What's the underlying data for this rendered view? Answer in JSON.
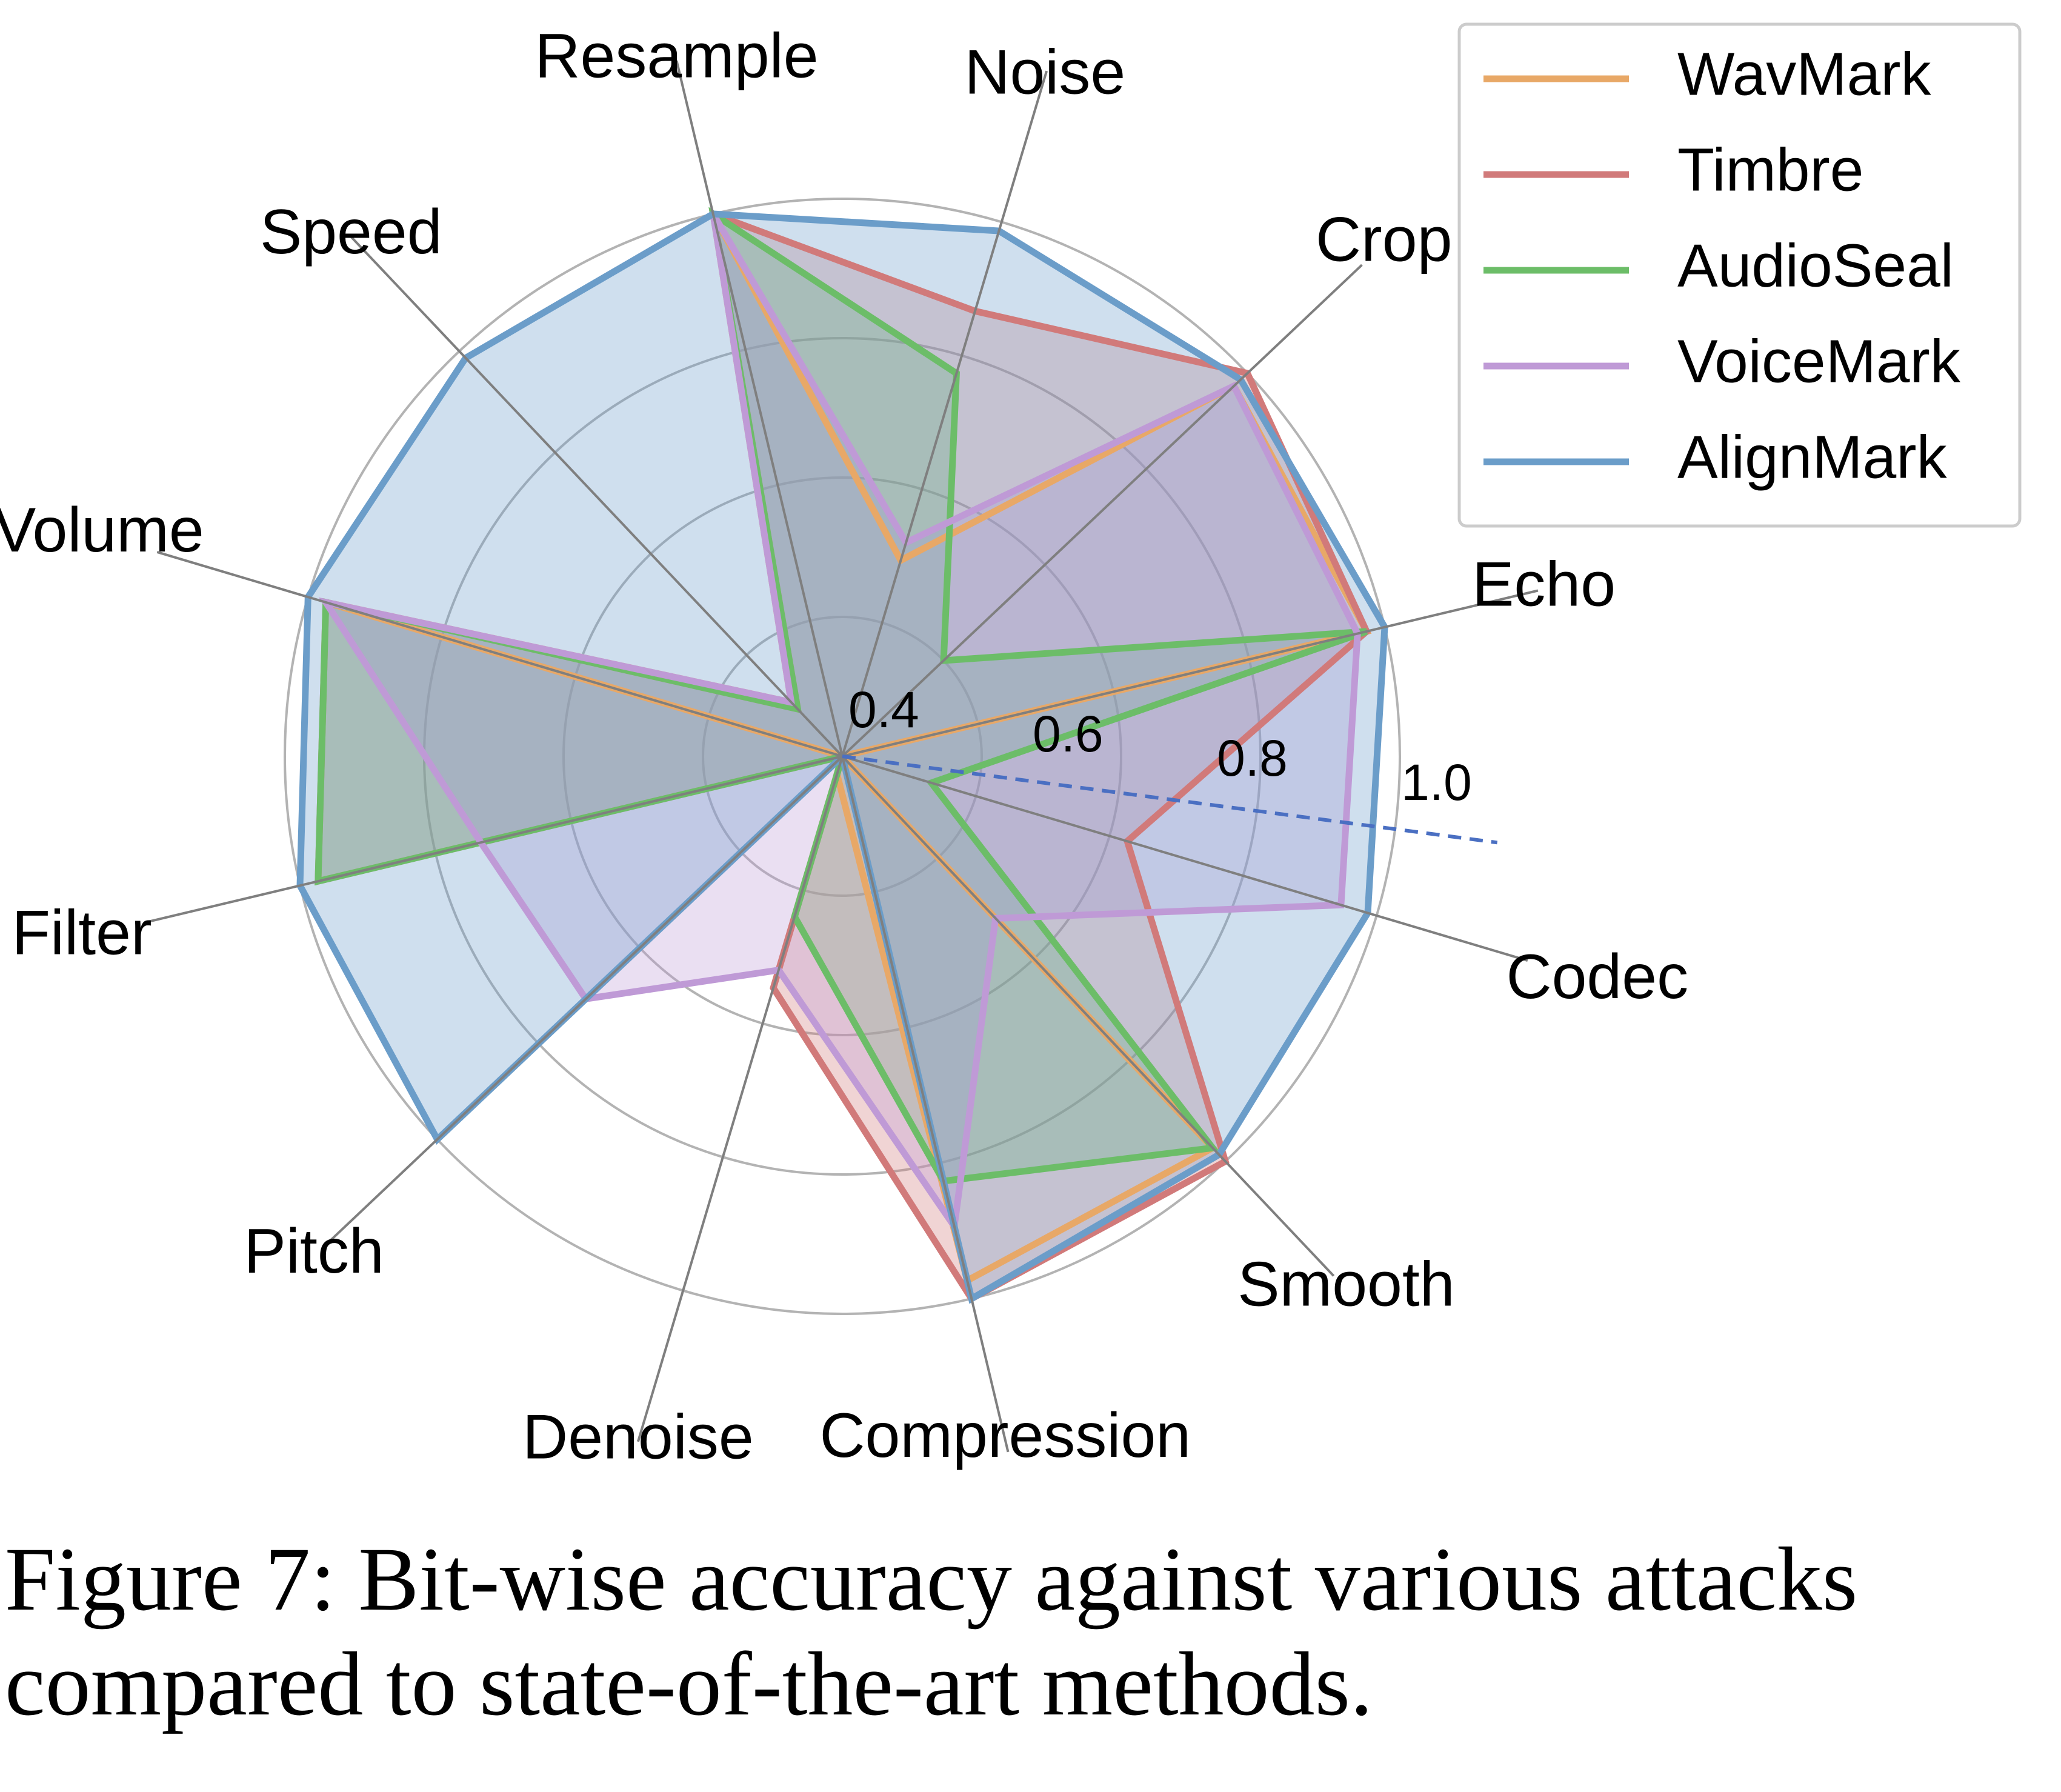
{
  "chart_data": {
    "type": "radar",
    "axes": [
      "Echo",
      "Crop",
      "Noise",
      "Resample",
      "Speed",
      "Volume",
      "Filter",
      "Pitch",
      "Denoise",
      "Compression",
      "Smooth",
      "Codec"
    ],
    "r_ticks": [
      "0.4",
      "0.6",
      "0.8",
      "1.0"
    ],
    "r_range": [
      0.4,
      1.0
    ],
    "legend_position": "top-right",
    "grid": true,
    "series": [
      {
        "name": "WavMark",
        "color": "#e8a867",
        "fill": false,
        "values": [
          0.98,
          0.98,
          0.62,
          1.0,
          0.48,
          0.98,
          0.4,
          0.4,
          0.42,
          0.98,
          0.98,
          0.4
        ]
      },
      {
        "name": "Timbre",
        "color": "#d17a7a",
        "fill": true,
        "values": [
          0.98,
          1.0,
          0.9,
          1.0,
          0.47,
          0.98,
          0.98,
          0.4,
          0.66,
          1.0,
          1.0,
          0.72
        ]
      },
      {
        "name": "AudioSeal",
        "color": "#6cbd68",
        "fill": true,
        "values": [
          0.98,
          0.55,
          0.83,
          1.0,
          0.47,
          0.98,
          0.98,
          0.4,
          0.58,
          0.87,
          0.98,
          0.5
        ]
      },
      {
        "name": "VoiceMark",
        "color": "#bf9ad6",
        "fill": true,
        "values": [
          0.97,
          0.98,
          0.64,
          1.0,
          0.48,
          0.98,
          0.8,
          0.78,
          0.64,
          0.92,
          0.64,
          0.96
        ]
      },
      {
        "name": "AlignMark",
        "color": "#6b9dc9",
        "fill": true,
        "values": [
          1.0,
          0.99,
          0.99,
          1.0,
          0.99,
          1.0,
          1.0,
          1.0,
          0.4,
          1.0,
          0.99,
          0.99
        ]
      }
    ]
  },
  "caption": {
    "line1": "Figure 7: Bit-wise accuracy against various attacks",
    "line2": "compared to state-of-the-art methods."
  }
}
